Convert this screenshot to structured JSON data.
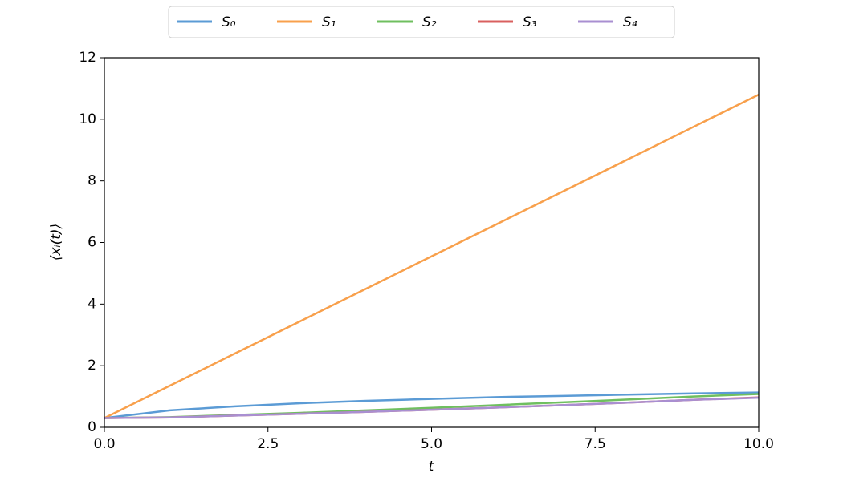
{
  "chart_data": {
    "type": "line",
    "x_label": "t",
    "y_label": "⟨xᵢ(t)⟩",
    "x": [
      0,
      1,
      2,
      3,
      4,
      5,
      6,
      7,
      8,
      9,
      10
    ],
    "series": [
      {
        "name": "S₀",
        "color": "#5b9bd5",
        "values": [
          0.3,
          0.55,
          0.68,
          0.78,
          0.86,
          0.92,
          0.98,
          1.02,
          1.06,
          1.1,
          1.13
        ]
      },
      {
        "name": "S₁",
        "color": "#f8a04c",
        "values": [
          0.3,
          1.35,
          2.4,
          3.45,
          4.5,
          5.55,
          6.6,
          7.65,
          8.7,
          9.75,
          10.8
        ]
      },
      {
        "name": "S₂",
        "color": "#6fbf5f",
        "values": [
          0.3,
          0.33,
          0.4,
          0.47,
          0.55,
          0.63,
          0.72,
          0.81,
          0.9,
          1.0,
          1.08
        ]
      },
      {
        "name": "S₃",
        "color": "#d9605f",
        "values": [
          0.3,
          0.32,
          0.38,
          0.44,
          0.5,
          0.57,
          0.64,
          0.72,
          0.8,
          0.89,
          0.97
        ]
      },
      {
        "name": "S₄",
        "color": "#a98fd1",
        "values": [
          0.3,
          0.32,
          0.38,
          0.44,
          0.5,
          0.57,
          0.64,
          0.72,
          0.8,
          0.89,
          0.96
        ]
      }
    ],
    "xlim": [
      0,
      10
    ],
    "ylim": [
      0,
      12
    ],
    "xticks": [
      {
        "value": 0,
        "label": "0.0"
      },
      2.5,
      {
        "value": 5,
        "label": "5.0"
      },
      7.5,
      {
        "value": 10,
        "label": "10.0"
      }
    ],
    "yticks": [
      0,
      2,
      4,
      6,
      8,
      10,
      12
    ],
    "legend": "top"
  }
}
